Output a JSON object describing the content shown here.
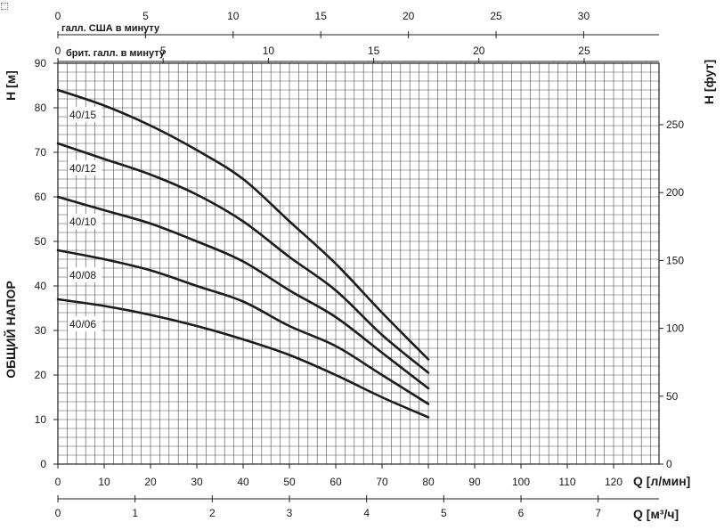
{
  "chart_data": {
    "type": "line",
    "x": [
      0,
      10,
      20,
      30,
      40,
      50,
      60,
      70,
      80
    ],
    "xlim": [
      0,
      130
    ],
    "ylim": [
      0,
      90
    ],
    "xlabel": "Q [л/мин]",
    "ylabel_left_top": "H [м]",
    "ylabel_left_side": "ОБЩИЙ НАПОР",
    "ylabel_right": "H [фут]",
    "x_ticks": [
      0,
      10,
      20,
      30,
      40,
      50,
      60,
      70,
      80,
      90,
      100,
      110,
      120
    ],
    "y_ticks": [
      0,
      10,
      20,
      30,
      40,
      50,
      60,
      70,
      80,
      90
    ],
    "grid": true,
    "secondary_axes": {
      "us_gallons": {
        "label": "галл. США в минуту",
        "ticks": [
          0,
          5,
          10,
          15,
          20,
          25,
          30
        ],
        "liters_per_unit": 3.785
      },
      "imp_gallons": {
        "label": "брит. галл. в минуту",
        "ticks": [
          0,
          5,
          10,
          15,
          20,
          25
        ],
        "liters_per_unit": 4.546
      },
      "cubic_meters_per_hour": {
        "label": "Q [м³/ч]",
        "ticks": [
          0,
          1,
          2,
          3,
          4,
          5,
          6,
          7
        ],
        "liters_per_min_per_unit": 16.6667
      },
      "feet": {
        "ticks": [
          0,
          50,
          100,
          150,
          200,
          250
        ],
        "feet_per_meter": 3.2808
      }
    },
    "series": [
      {
        "name": "40/15",
        "values": [
          84,
          80.5,
          76,
          70.5,
          64,
          54.5,
          45,
          34,
          23.5
        ]
      },
      {
        "name": "40/12",
        "values": [
          72,
          68.5,
          65,
          60.5,
          54.5,
          46.5,
          39,
          29,
          20.5
        ]
      },
      {
        "name": "40/10",
        "values": [
          60,
          57,
          54,
          50,
          45.5,
          39,
          33,
          25,
          17
        ]
      },
      {
        "name": "40/08",
        "values": [
          48,
          46,
          43.5,
          40,
          36.5,
          31,
          26.5,
          20,
          13.5
        ]
      },
      {
        "name": "40/06",
        "values": [
          37,
          35.5,
          33.5,
          31,
          28,
          24.5,
          20,
          15,
          10.5
        ]
      }
    ]
  }
}
